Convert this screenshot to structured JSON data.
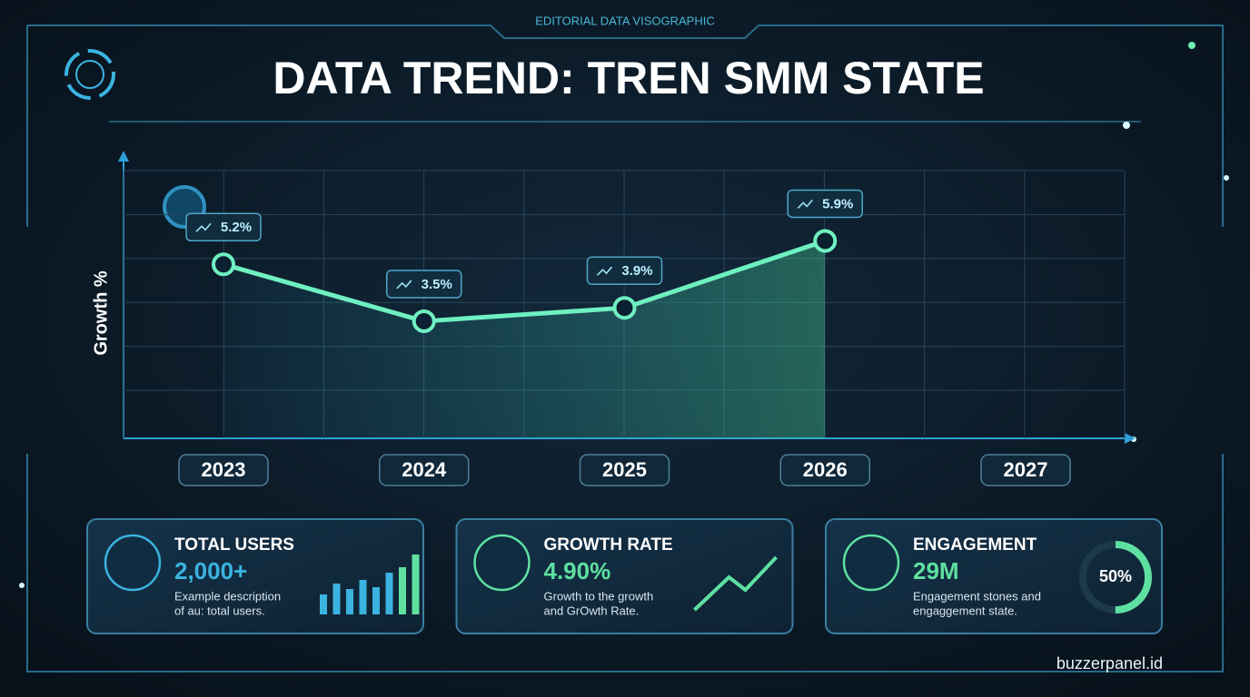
{
  "header": "EDITORIAL DATA VISOGRAPHIC",
  "title": "DATA TREND: TREN SMM STATE",
  "chart_data": {
    "type": "line",
    "y_label": "Growth %",
    "categories": [
      "2023",
      "2024",
      "2025",
      "2026",
      "2027"
    ],
    "values": [
      5.2,
      3.5,
      3.9,
      5.9,
      null
    ],
    "value_labels": [
      "5.2%",
      "3.5%",
      "3.9%",
      "5.9%",
      null
    ],
    "color": "#6ff0c0",
    "ylim": [
      0,
      8
    ],
    "grid": true
  },
  "cards": [
    {
      "title": "TOTAL USERS",
      "value": "2,000+",
      "description": [
        "Example description",
        "of au: total users."
      ]
    },
    {
      "title": "GROWTH RATE",
      "value": "4.90%",
      "description": [
        "Growth to the growth",
        "and GrOwth Rate."
      ]
    },
    {
      "title": "ENGAGEMENT",
      "value": "29M",
      "description": [
        "Engagement stones and",
        "engaggement state."
      ],
      "gauge": {
        "value": 50,
        "label": "50%"
      }
    }
  ],
  "footer": "buzzerpanel.id"
}
